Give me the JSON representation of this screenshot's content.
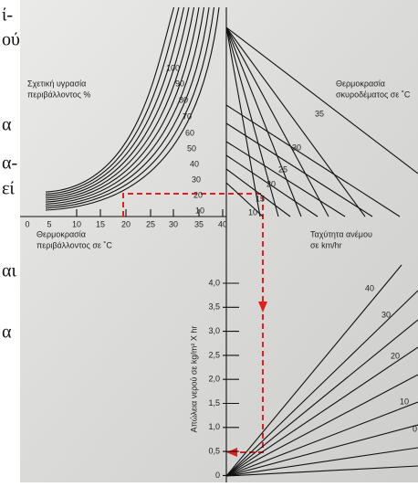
{
  "side_text": [
    "ί-",
    "ού",
    "α",
    "α-",
    "εί",
    "αι",
    "α"
  ],
  "humidity": {
    "title_lines": [
      "Σχετική υγρασία",
      "περιβάλλοντος %"
    ],
    "curve_labels": [
      "100",
      "90",
      "80",
      "70",
      "60",
      "50",
      "40",
      "30",
      "20",
      "10"
    ]
  },
  "air_temperature": {
    "title_lines": [
      "Θερμοκρασία",
      "περιβάλλοντος σε ˚C"
    ],
    "tick_labels": [
      "0",
      "5",
      "10",
      "15",
      "20",
      "25",
      "30",
      "35",
      "40"
    ]
  },
  "concrete_temperature": {
    "title_lines": [
      "Θερμοκρασία",
      "σκυροδέματος σε ˚C"
    ],
    "line_labels": [
      "35",
      "30",
      "25",
      "20",
      "15",
      "10"
    ]
  },
  "wind_speed": {
    "title_lines": [
      "Ταχύτητα ανέμου",
      "σε km/hr"
    ],
    "line_labels": [
      "40",
      "30",
      "20",
      "10",
      "0"
    ]
  },
  "water_loss": {
    "axis_title": "Απώλεια νερού σε kg/m² X hr",
    "tick_labels": [
      "4,0",
      "3,5",
      "3,0",
      "2,5",
      "2,0",
      "1,5",
      "1,0",
      "0,5",
      "0"
    ]
  }
}
